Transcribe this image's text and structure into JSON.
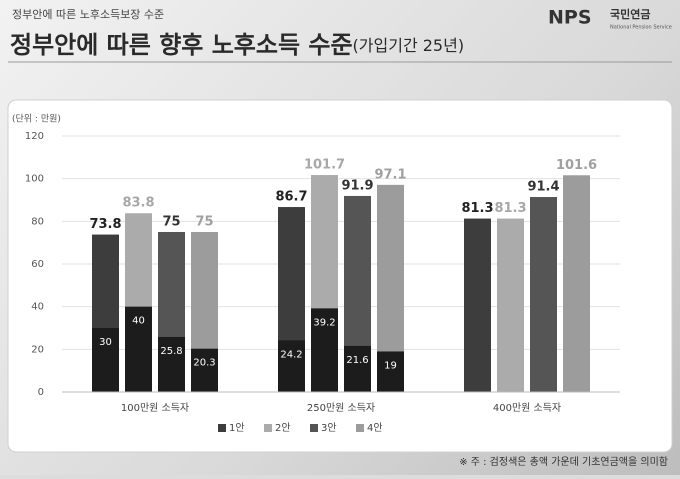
{
  "header": {
    "supertitle": "정부안에 따른 노후소득보장 수준",
    "title_main": "정부안에 따른 향후 노후소득 수준",
    "title_sub": "(가입기간 25년)",
    "logo_mark": "NPS",
    "logo_name": "국민연금",
    "logo_en": "National Pension Service"
  },
  "chart_data": {
    "type": "bar",
    "unit_label": "(단위 : 만원)",
    "categories": [
      "100만원 소득자",
      "250만원 소득자",
      "400만원 소득자"
    ],
    "series": [
      {
        "name": "1안",
        "color": "#3d3d3d",
        "label_color": "#222222",
        "values": [
          73.8,
          86.7,
          81.3
        ],
        "inner_values": [
          30,
          24.2,
          null
        ]
      },
      {
        "name": "2안",
        "color": "#ababab",
        "label_color": "#a8a8a8",
        "values": [
          83.8,
          101.7,
          81.3
        ],
        "inner_values": [
          40,
          39.2,
          null
        ]
      },
      {
        "name": "3안",
        "color": "#555555",
        "label_color": "#333333",
        "values": [
          75,
          91.9,
          91.4
        ],
        "inner_values": [
          25.8,
          21.6,
          null
        ]
      },
      {
        "name": "4안",
        "color": "#9c9c9c",
        "label_color": "#a0a0a0",
        "values": [
          75,
          97.1,
          101.6
        ],
        "inner_values": [
          20.3,
          19,
          null
        ]
      }
    ],
    "inner_color": "#1c1c1c",
    "ylim": [
      0,
      120
    ],
    "yticks": [
      0,
      20,
      40,
      60,
      80,
      100,
      120
    ],
    "grid": true,
    "legend_position": "bottom",
    "note": "※ 주 : 검정색은 총액 가운데 기초연금액을 의미함"
  }
}
